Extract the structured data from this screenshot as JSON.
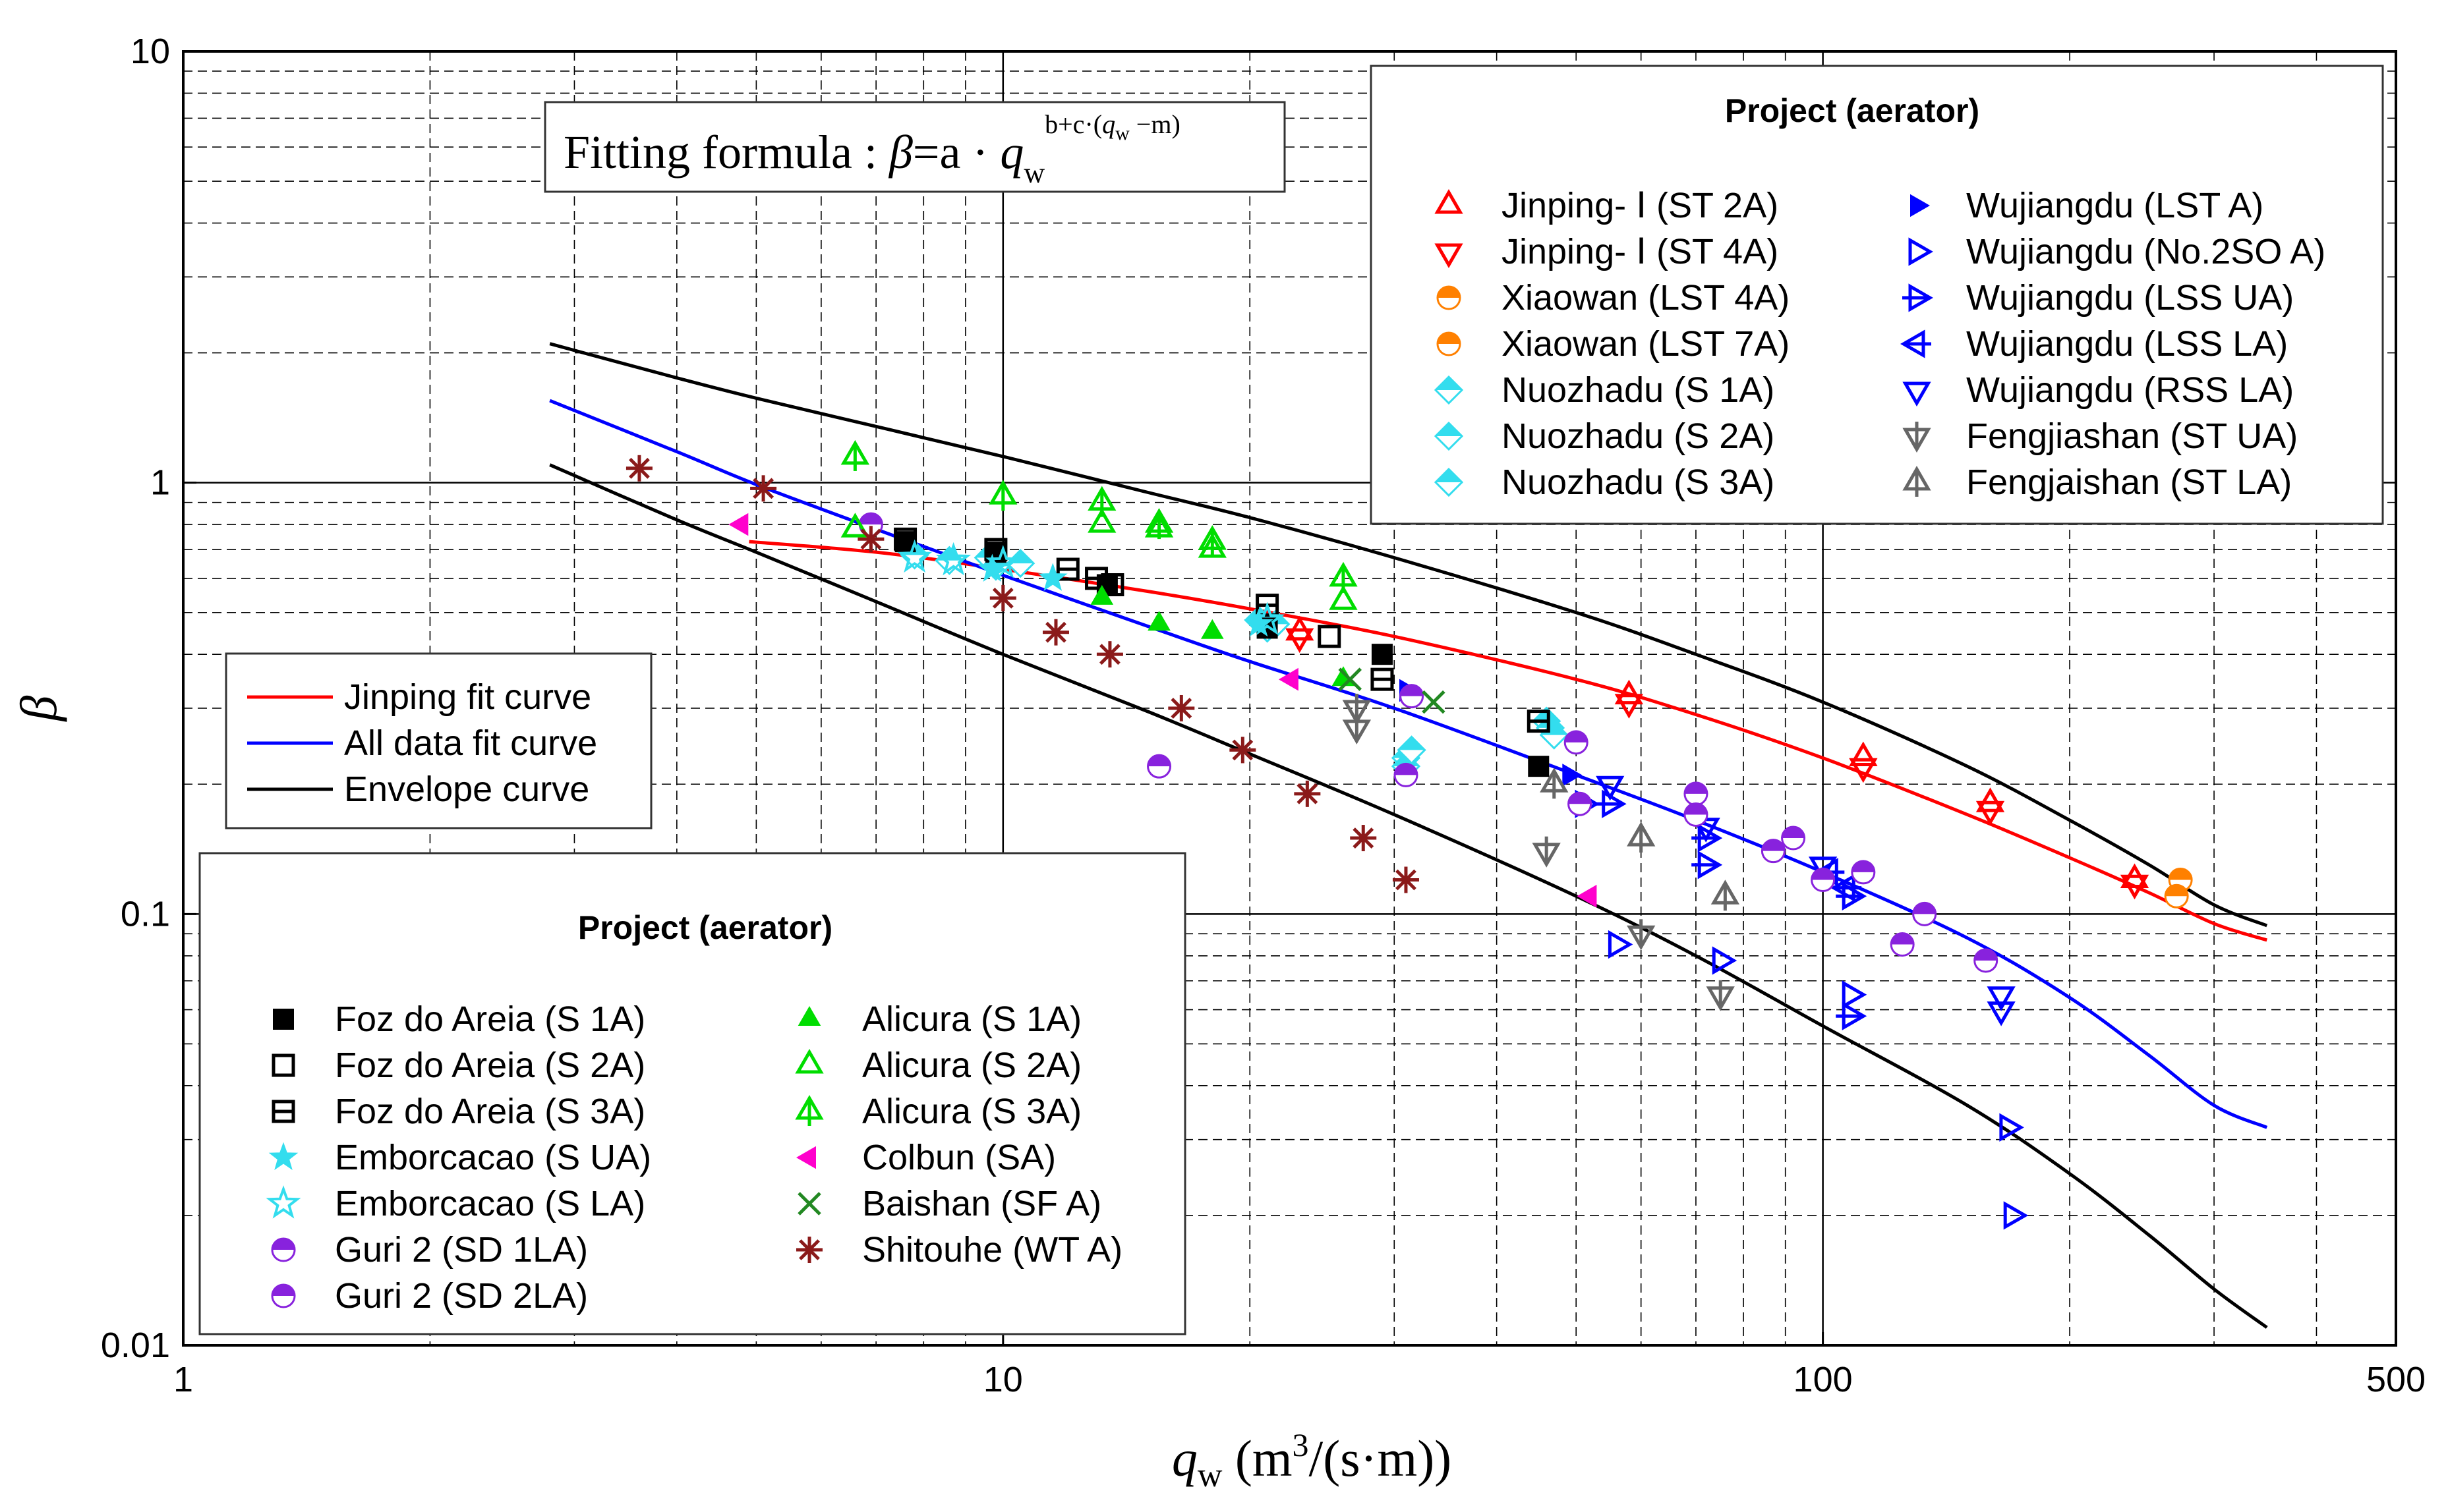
{
  "chart_data": {
    "type": "scatter",
    "xscale": "log",
    "yscale": "log",
    "xlim": [
      1,
      500
    ],
    "ylim": [
      0.01,
      10
    ],
    "x_tick_labels": [
      "1",
      "10",
      "100",
      "500"
    ],
    "y_tick_labels": [
      "0.01",
      "0.1",
      "1",
      "10"
    ],
    "xlabel": {
      "main": "q",
      "sub": "w",
      "rest": " (m",
      "sup": "3",
      "end": "/(s·m))"
    },
    "ylabel": "β",
    "grid": true,
    "formula": {
      "lead": "Fitting formula : ",
      "beta": "β",
      "eq": "=a · ",
      "q": "q",
      "sub": "w",
      "exp_main": "b+c·(",
      "exp_q": "q",
      "exp_sub": "w",
      "exp_end": " −m)"
    },
    "curve_legend": [
      {
        "label": "Jinping fit curve",
        "color": "#ff0000"
      },
      {
        "label": "All data fit curve",
        "color": "#0000ff"
      },
      {
        "label": "Envelope curve",
        "color": "#000000"
      }
    ],
    "curves": [
      {
        "name": "Jinping fit curve",
        "color": "#ff0000",
        "points": [
          [
            4.9,
            0.73
          ],
          [
            7,
            0.69
          ],
          [
            10,
            0.63
          ],
          [
            15,
            0.56
          ],
          [
            20,
            0.51
          ],
          [
            30,
            0.44
          ],
          [
            50,
            0.35
          ],
          [
            70,
            0.29
          ],
          [
            100,
            0.23
          ],
          [
            150,
            0.17
          ],
          [
            200,
            0.135
          ],
          [
            250,
            0.112
          ],
          [
            300,
            0.095
          ],
          [
            348,
            0.087
          ]
        ]
      },
      {
        "name": "All data fit curve",
        "color": "#0000ff",
        "points": [
          [
            2.8,
            1.55
          ],
          [
            4,
            1.18
          ],
          [
            5,
            0.99
          ],
          [
            7,
            0.78
          ],
          [
            10,
            0.61
          ],
          [
            15,
            0.465
          ],
          [
            20,
            0.385
          ],
          [
            30,
            0.3
          ],
          [
            50,
            0.21
          ],
          [
            70,
            0.165
          ],
          [
            100,
            0.125
          ],
          [
            150,
            0.088
          ],
          [
            200,
            0.064
          ],
          [
            250,
            0.047
          ],
          [
            300,
            0.036
          ],
          [
            348,
            0.032
          ]
        ]
      },
      {
        "name": "Envelope curve",
        "color": "#000000",
        "points": [
          [
            2.8,
            2.1
          ],
          [
            4,
            1.75
          ],
          [
            5,
            1.57
          ],
          [
            7,
            1.35
          ],
          [
            10,
            1.15
          ],
          [
            15,
            0.95
          ],
          [
            20,
            0.83
          ],
          [
            30,
            0.67
          ],
          [
            50,
            0.5
          ],
          [
            70,
            0.4
          ],
          [
            100,
            0.31
          ],
          [
            150,
            0.22
          ],
          [
            200,
            0.165
          ],
          [
            250,
            0.13
          ],
          [
            300,
            0.105
          ],
          [
            348,
            0.094
          ]
        ]
      },
      {
        "name": "Envelope curve",
        "color": "#000000",
        "points": [
          [
            2.8,
            1.1
          ],
          [
            4,
            0.82
          ],
          [
            5,
            0.69
          ],
          [
            7,
            0.53
          ],
          [
            10,
            0.4
          ],
          [
            15,
            0.295
          ],
          [
            20,
            0.235
          ],
          [
            30,
            0.17
          ],
          [
            50,
            0.11
          ],
          [
            70,
            0.08
          ],
          [
            100,
            0.055
          ],
          [
            150,
            0.036
          ],
          [
            200,
            0.025
          ],
          [
            250,
            0.018
          ],
          [
            300,
            0.0135
          ],
          [
            348,
            0.011
          ]
        ]
      }
    ],
    "series": [
      {
        "name": "Jinping- Ⅰ (ST 2A)",
        "marker": "tri-up-open",
        "color": "#ff0000",
        "points": [
          [
            23,
            0.45
          ],
          [
            58,
            0.32
          ],
          [
            112,
            0.23
          ],
          [
            160,
            0.18
          ],
          [
            240,
            0.12
          ]
        ]
      },
      {
        "name": "Jinping- Ⅰ (ST 4A)",
        "marker": "tri-down-open",
        "color": "#ff0000",
        "points": [
          [
            23,
            0.44
          ],
          [
            58,
            0.31
          ],
          [
            112,
            0.22
          ],
          [
            160,
            0.175
          ],
          [
            240,
            0.118
          ]
        ]
      },
      {
        "name": "Xiaowan (LST 4A)",
        "marker": "circle-half",
        "color": "#ff8000",
        "points": [
          [
            273,
            0.12
          ]
        ]
      },
      {
        "name": "Xiaowan (LST 7A)",
        "marker": "circle-half",
        "color": "#ff8000",
        "points": [
          [
            270,
            0.11
          ]
        ]
      },
      {
        "name": "Nuozhadu (S 1A)",
        "marker": "diamond-half",
        "color": "#33ddee",
        "points": [
          [
            7.8,
            0.68
          ],
          [
            9.6,
            0.67
          ],
          [
            20.5,
            0.48
          ],
          [
            31,
            0.23
          ],
          [
            46,
            0.28
          ]
        ]
      },
      {
        "name": "Nuozhadu (S 2A)",
        "marker": "diamond-half",
        "color": "#33ddee",
        "points": [
          [
            8.6,
            0.66
          ],
          [
            10.5,
            0.65
          ],
          [
            21,
            0.46
          ],
          [
            31,
            0.22
          ],
          [
            46.5,
            0.27
          ]
        ]
      },
      {
        "name": "Nuozhadu (S 3A)",
        "marker": "diamond-half",
        "color": "#33ddee",
        "points": [
          [
            9.8,
            0.64
          ],
          [
            21.5,
            0.47
          ],
          [
            31.5,
            0.24
          ],
          [
            47,
            0.26
          ]
        ]
      },
      {
        "name": "Wujiangdu (LST A)",
        "marker": "tri-right-filled",
        "color": "#0000ff",
        "points": [
          [
            31,
            0.33
          ],
          [
            49,
            0.21
          ]
        ]
      },
      {
        "name": "Wujiangdu (No.2SO A)",
        "marker": "tri-right-open",
        "color": "#0000ff",
        "points": [
          [
            51,
            0.18
          ],
          [
            56,
            0.085
          ],
          [
            75,
            0.078
          ],
          [
            108,
            0.065
          ],
          [
            168,
            0.032
          ],
          [
            170,
            0.02
          ]
        ]
      },
      {
        "name": "Wujiangdu (LSS UA)",
        "marker": "tri-right-bar",
        "color": "#0000ff",
        "points": [
          [
            55,
            0.18
          ],
          [
            72,
            0.15
          ],
          [
            72,
            0.13
          ],
          [
            108,
            0.11
          ],
          [
            108,
            0.058
          ]
        ]
      },
      {
        "name": "Wujiangdu (LSS LA)",
        "marker": "tri-left-bar",
        "color": "#0000ff",
        "points": [
          [
            102,
            0.125
          ],
          [
            107,
            0.115
          ]
        ]
      },
      {
        "name": "Wujiangdu (RSS LA)",
        "marker": "tri-down-open",
        "color": "#0000ff",
        "points": [
          [
            55,
            0.2
          ],
          [
            72,
            0.16
          ],
          [
            100,
            0.13
          ],
          [
            165,
            0.065
          ],
          [
            165,
            0.06
          ]
        ]
      },
      {
        "name": "Fengjiashan (ST UA)",
        "marker": "tri-down-bar",
        "color": "#666666",
        "points": [
          [
            27,
            0.3
          ],
          [
            27,
            0.27
          ],
          [
            46,
            0.14
          ],
          [
            60,
            0.09
          ],
          [
            75,
            0.065
          ]
        ]
      },
      {
        "name": "Fengjaishan (ST LA)",
        "marker": "tri-up-bar",
        "color": "#666666",
        "points": [
          [
            47,
            0.2
          ],
          [
            60,
            0.15
          ],
          [
            76,
            0.11
          ]
        ]
      },
      {
        "name": "Foz do Areia (S 1A)",
        "marker": "square-filled",
        "color": "#000000",
        "points": [
          [
            7.6,
            0.73
          ],
          [
            9.8,
            0.69
          ],
          [
            13.4,
            0.58
          ],
          [
            21,
            0.46
          ],
          [
            29,
            0.4
          ],
          [
            45,
            0.22
          ]
        ]
      },
      {
        "name": "Foz do Areia (S 2A)",
        "marker": "square-open",
        "color": "#000000",
        "points": [
          [
            13.6,
            0.58
          ],
          [
            25,
            0.44
          ]
        ]
      },
      {
        "name": "Foz do Areia (S 3A)",
        "marker": "square-bar",
        "color": "#000000",
        "points": [
          [
            7.6,
            0.74
          ],
          [
            9.8,
            0.7
          ],
          [
            12,
            0.63
          ],
          [
            13,
            0.6
          ],
          [
            21,
            0.52
          ],
          [
            29,
            0.35
          ],
          [
            45,
            0.28
          ]
        ]
      },
      {
        "name": "Emborcacao (S UA)",
        "marker": "star-filled",
        "color": "#33ddee",
        "points": [
          [
            9.7,
            0.63
          ],
          [
            11.5,
            0.6
          ],
          [
            20.5,
            0.47
          ]
        ]
      },
      {
        "name": "Emborcacao (S LA)",
        "marker": "star-open",
        "color": "#33ddee",
        "points": [
          [
            7.8,
            0.67
          ],
          [
            8.7,
            0.66
          ],
          [
            10,
            0.65
          ],
          [
            21,
            0.48
          ]
        ]
      },
      {
        "name": "Guri 2 (SD 1LA)",
        "marker": "circle-half",
        "color": "#8822dd",
        "points": [
          [
            15.5,
            0.22
          ],
          [
            31,
            0.21
          ],
          [
            50,
            0.25
          ],
          [
            70,
            0.19
          ],
          [
            87,
            0.14
          ],
          [
            100,
            0.12
          ],
          [
            125,
            0.085
          ],
          [
            158,
            0.078
          ]
        ]
      },
      {
        "name": "Guri 2 (SD 2LA)",
        "marker": "circle-half",
        "color": "#8822dd",
        "points": [
          [
            6.9,
            0.8
          ],
          [
            31.5,
            0.32
          ],
          [
            50.5,
            0.18
          ],
          [
            70,
            0.17
          ],
          [
            92,
            0.15
          ],
          [
            112,
            0.125
          ],
          [
            133,
            0.1
          ]
        ]
      },
      {
        "name": "Alicura (S 1A)",
        "marker": "tri-up-filled",
        "color": "#00dd00",
        "points": [
          [
            13.2,
            0.54
          ],
          [
            15.5,
            0.47
          ],
          [
            18,
            0.45
          ],
          [
            26,
            0.35
          ]
        ]
      },
      {
        "name": "Alicura (S 2A)",
        "marker": "tri-up-open",
        "color": "#00dd00",
        "points": [
          [
            6.6,
            0.78
          ],
          [
            13.2,
            0.8
          ],
          [
            15.5,
            0.78
          ],
          [
            18,
            0.7
          ],
          [
            26,
            0.53
          ]
        ]
      },
      {
        "name": "Alicura (S 3A)",
        "marker": "tri-up-bar",
        "color": "#00dd00",
        "points": [
          [
            6.6,
            1.15
          ],
          [
            10,
            0.93
          ],
          [
            13.2,
            0.9
          ],
          [
            15.5,
            0.8
          ],
          [
            18,
            0.73
          ],
          [
            26,
            0.6
          ]
        ]
      },
      {
        "name": "Colbun (SA)",
        "marker": "tri-left-filled",
        "color": "#ff00cc",
        "points": [
          [
            4.8,
            0.8
          ],
          [
            22.5,
            0.35
          ],
          [
            52,
            0.11
          ]
        ]
      },
      {
        "name": "Baishan (SF A)",
        "marker": "x-mark",
        "color": "#228822",
        "points": [
          [
            26.5,
            0.35
          ],
          [
            33.5,
            0.31
          ]
        ]
      },
      {
        "name": "Shitouhe (WT A)",
        "marker": "asterisk",
        "color": "#8b1a1a",
        "points": [
          [
            3.6,
            1.08
          ],
          [
            5.1,
            0.97
          ],
          [
            6.9,
            0.74
          ],
          [
            10,
            0.54
          ],
          [
            11.6,
            0.45
          ],
          [
            13.5,
            0.4
          ],
          [
            16.5,
            0.3
          ],
          [
            19.6,
            0.24
          ],
          [
            23.5,
            0.19
          ],
          [
            27.5,
            0.15
          ],
          [
            31,
            0.12
          ]
        ]
      }
    ],
    "legend_top": {
      "title": "Project (aerator)",
      "col1": [
        "Jinping- Ⅰ (ST 2A)",
        "Jinping- Ⅰ (ST 4A)",
        "Xiaowan (LST 4A)",
        "Xiaowan (LST 7A)",
        "Nuozhadu (S 1A)",
        "Nuozhadu (S 2A)",
        "Nuozhadu (S 3A)"
      ],
      "col2": [
        "Wujiangdu (LST A)",
        "Wujiangdu (No.2SO A)",
        "Wujiangdu (LSS UA)",
        "Wujiangdu (LSS LA)",
        "Wujiangdu (RSS LA)",
        "Fengjiashan (ST UA)",
        "Fengjaishan (ST LA)"
      ]
    },
    "legend_bottom": {
      "title": "Project (aerator)",
      "col1": [
        "Foz do Areia (S 1A)",
        "Foz do Areia (S 2A)",
        "Foz do Areia (S 3A)",
        "Emborcacao (S UA)",
        "Emborcacao (S LA)",
        "Guri 2 (SD 1LA)",
        "Guri 2 (SD 2LA)"
      ],
      "col2": [
        "Alicura (S 1A)",
        "Alicura (S 2A)",
        "Alicura (S 3A)",
        "Colbun (SA)",
        "Baishan (SF A)",
        "Shitouhe (WT A)"
      ]
    }
  }
}
